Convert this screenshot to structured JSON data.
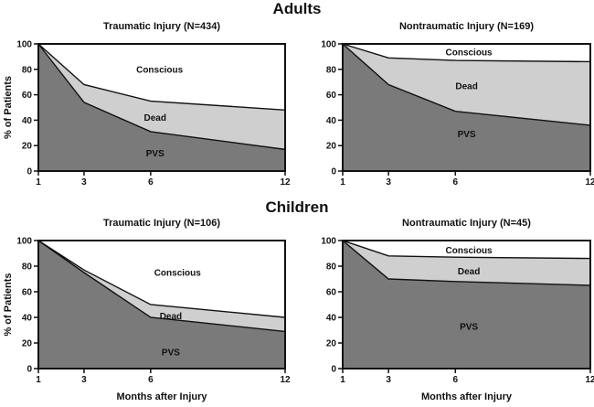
{
  "figure": {
    "group_titles": [
      "Adults",
      "Children"
    ],
    "colors": {
      "pvs": "#7a7a7a",
      "dead": "#cfcfcf",
      "conscious": "#ffffff",
      "line": "#111111"
    }
  },
  "chart_data": [
    {
      "type": "area",
      "group": "Adults",
      "title": "Traumatic Injury (N=434)",
      "xlabel": "",
      "ylabel": "% of Patients",
      "x": [
        1,
        3,
        6,
        12
      ],
      "x_tick_labels": [
        "1",
        "3",
        "6",
        "12"
      ],
      "y_tick_labels": [
        "0",
        "20",
        "40",
        "60",
        "80",
        "100"
      ],
      "ylim": [
        0,
        100
      ],
      "grid": false,
      "stacking": "cumulative boundaries",
      "series": [
        {
          "name": "PVS",
          "upper_boundary": [
            100,
            54,
            31,
            17
          ]
        },
        {
          "name": "Dead",
          "upper_boundary": [
            100,
            68,
            55,
            48
          ]
        },
        {
          "name": "Conscious",
          "upper_boundary": [
            100,
            100,
            100,
            100
          ]
        }
      ],
      "region_labels": [
        "Conscious",
        "Dead",
        "PVS"
      ]
    },
    {
      "type": "area",
      "group": "Adults",
      "title": "Nontraumatic Injury (N=169)",
      "xlabel": "",
      "ylabel": "",
      "x": [
        1,
        3,
        6,
        12
      ],
      "x_tick_labels": [
        "1",
        "3",
        "6",
        "12"
      ],
      "y_tick_labels": [
        "0",
        "20",
        "40",
        "60",
        "80",
        "100"
      ],
      "ylim": [
        0,
        100
      ],
      "grid": false,
      "stacking": "cumulative boundaries",
      "series": [
        {
          "name": "PVS",
          "upper_boundary": [
            100,
            68,
            47,
            36
          ]
        },
        {
          "name": "Dead",
          "upper_boundary": [
            100,
            89,
            87,
            86
          ]
        },
        {
          "name": "Conscious",
          "upper_boundary": [
            100,
            100,
            100,
            100
          ]
        }
      ],
      "region_labels": [
        "Conscious",
        "Dead",
        "PVS"
      ]
    },
    {
      "type": "area",
      "group": "Children",
      "title": "Traumatic Injury (N=106)",
      "xlabel": "Months after Injury",
      "ylabel": "% of Patients",
      "x": [
        1,
        3,
        6,
        12
      ],
      "x_tick_labels": [
        "1",
        "3",
        "6",
        "12"
      ],
      "y_tick_labels": [
        "0",
        "20",
        "40",
        "60",
        "80",
        "100"
      ],
      "ylim": [
        0,
        100
      ],
      "grid": false,
      "stacking": "cumulative boundaries",
      "series": [
        {
          "name": "PVS",
          "upper_boundary": [
            100,
            75,
            40,
            29
          ]
        },
        {
          "name": "Dead",
          "upper_boundary": [
            100,
            77,
            50,
            40
          ]
        },
        {
          "name": "Conscious",
          "upper_boundary": [
            100,
            100,
            100,
            100
          ]
        }
      ],
      "region_labels": [
        "Conscious",
        "Dead",
        "PVS"
      ]
    },
    {
      "type": "area",
      "group": "Children",
      "title": "Nontraumatic Injury (N=45)",
      "xlabel": "Months after Injury",
      "ylabel": "",
      "x": [
        1,
        3,
        6,
        12
      ],
      "x_tick_labels": [
        "1",
        "3",
        "6",
        "12"
      ],
      "y_tick_labels": [
        "0",
        "20",
        "40",
        "60",
        "80",
        "100"
      ],
      "ylim": [
        0,
        100
      ],
      "grid": false,
      "stacking": "cumulative boundaries",
      "series": [
        {
          "name": "PVS",
          "upper_boundary": [
            100,
            70,
            68,
            65
          ]
        },
        {
          "name": "Dead",
          "upper_boundary": [
            100,
            88,
            87,
            86
          ]
        },
        {
          "name": "Conscious",
          "upper_boundary": [
            100,
            100,
            100,
            100
          ]
        }
      ],
      "region_labels": [
        "Conscious",
        "Dead",
        "PVS"
      ]
    }
  ]
}
